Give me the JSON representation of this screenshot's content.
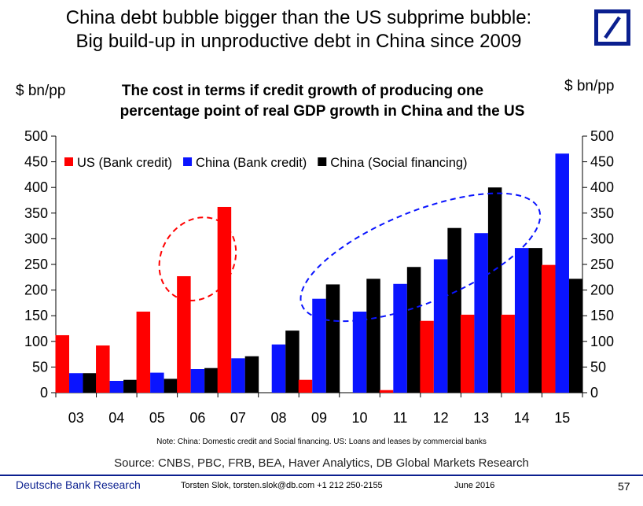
{
  "header": {
    "line1": "China debt bubble bigger than the US subprime bubble:",
    "line2": "Big build-up in unproductive debt in China since 2009",
    "logo_color": "#0a1f8f"
  },
  "chart_data": {
    "type": "bar",
    "title_line1": "The cost in terms if credit growth of producing one",
    "title_line2": "percentage point of real GDP growth in China and the US",
    "ylabel_left": "$ bn/pp",
    "ylabel_right": "$ bn/pp",
    "ylim": [
      0,
      500
    ],
    "yticks": [
      "0",
      "50",
      "100",
      "150",
      "200",
      "250",
      "300",
      "350",
      "400",
      "450",
      "500"
    ],
    "categories": [
      "03",
      "04",
      "05",
      "06",
      "07",
      "08",
      "09",
      "10",
      "11",
      "12",
      "13",
      "14",
      "15"
    ],
    "series": [
      {
        "name": "US (Bank credit)",
        "color": "#ff0000",
        "values": [
          112,
          92,
          158,
          227,
          362,
          0,
          25,
          0,
          5,
          140,
          152,
          152,
          249
        ]
      },
      {
        "name": "China (Bank credit)",
        "color": "#0a14ff",
        "values": [
          38,
          23,
          39,
          46,
          67,
          94,
          183,
          158,
          212,
          260,
          311,
          282,
          466
        ]
      },
      {
        "name": "China (Social financing)",
        "color": "#000000",
        "values": [
          38,
          25,
          27,
          48,
          71,
          121,
          211,
          222,
          245,
          321,
          400,
          282,
          222
        ]
      }
    ],
    "legend_position": "top-left",
    "annotations": [
      {
        "type": "dashed-ellipse",
        "color": "#ff0000",
        "around": [
          "05",
          "06",
          "07"
        ]
      },
      {
        "type": "dashed-ellipse",
        "color": "#0a14ff",
        "around": [
          "09",
          "10",
          "11",
          "12",
          "13",
          "14"
        ]
      }
    ]
  },
  "note": "Note: China: Domestic credit and Social financing. US: Loans and leases by commercial banks",
  "source": "Source: CNBS, PBC, FRB, BEA, Haver Analytics, DB Global Markets Research",
  "footer": {
    "brand": "Deutsche Bank Research",
    "author": "Torsten Slok, torsten.slok@db.com  +1 212 250-2155",
    "date": "June 2016",
    "page": "57"
  }
}
